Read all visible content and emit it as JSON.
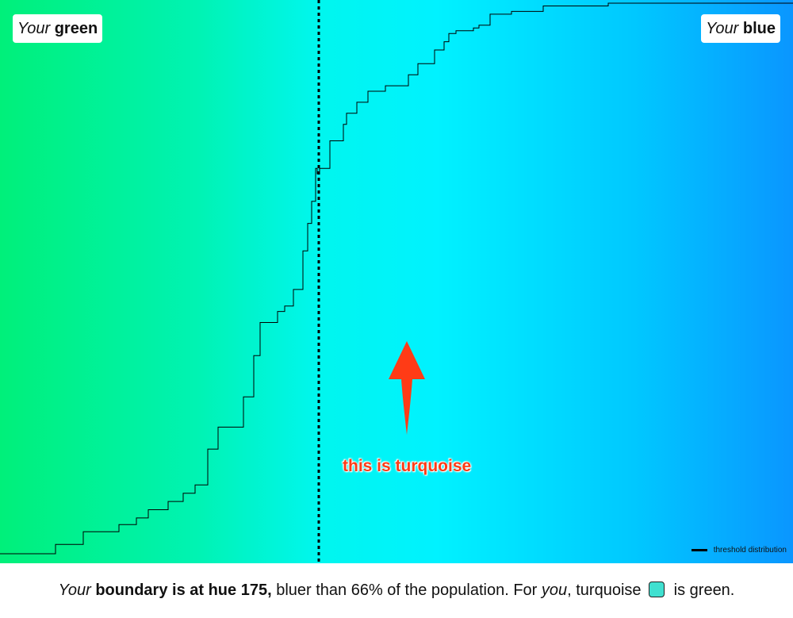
{
  "labels": {
    "left_prefix": "Your",
    "left_word": "green",
    "right_prefix": "Your",
    "right_word": "blue"
  },
  "annotation": "this is turquoise",
  "legend": "threshold distribution",
  "footer": {
    "your": "Your",
    "boundary": "boundary is at hue 175,",
    "mid": "bluer than 66% of the population. For",
    "you": "you",
    "turquoise": ", turquoise",
    "end": "is green."
  },
  "colors": {
    "annotation": "#ff3b16",
    "turquoise_swatch": "#40e0d0",
    "line": "#000000"
  },
  "chart_data": {
    "type": "line",
    "xlabel": "",
    "ylabel": "",
    "xlim": [
      0,
      1000
    ],
    "ylim": [
      0,
      1
    ],
    "boundary": 175,
    "grid": false,
    "legend_position": "bottom-right",
    "series": [
      {
        "name": "threshold distribution",
        "x": [
          0,
          70,
          105,
          150,
          172,
          187,
          212,
          231,
          246,
          262,
          275,
          307,
          320,
          328,
          350,
          359,
          370,
          382,
          388,
          393,
          398,
          400,
          403,
          416,
          433,
          437,
          450,
          464,
          486,
          515,
          527,
          548,
          560,
          566,
          575,
          597,
          604,
          618,
          645,
          685,
          767,
          1000
        ],
        "y": [
          0.0,
          0.017,
          0.04,
          0.053,
          0.065,
          0.08,
          0.095,
          0.11,
          0.125,
          0.19,
          0.23,
          0.285,
          0.36,
          0.42,
          0.44,
          0.45,
          0.48,
          0.55,
          0.6,
          0.64,
          0.7,
          0.69,
          0.7,
          0.75,
          0.78,
          0.8,
          0.82,
          0.84,
          0.85,
          0.87,
          0.89,
          0.915,
          0.93,
          0.945,
          0.95,
          0.955,
          0.96,
          0.98,
          0.985,
          0.995,
          1.0,
          1.0
        ]
      }
    ]
  }
}
